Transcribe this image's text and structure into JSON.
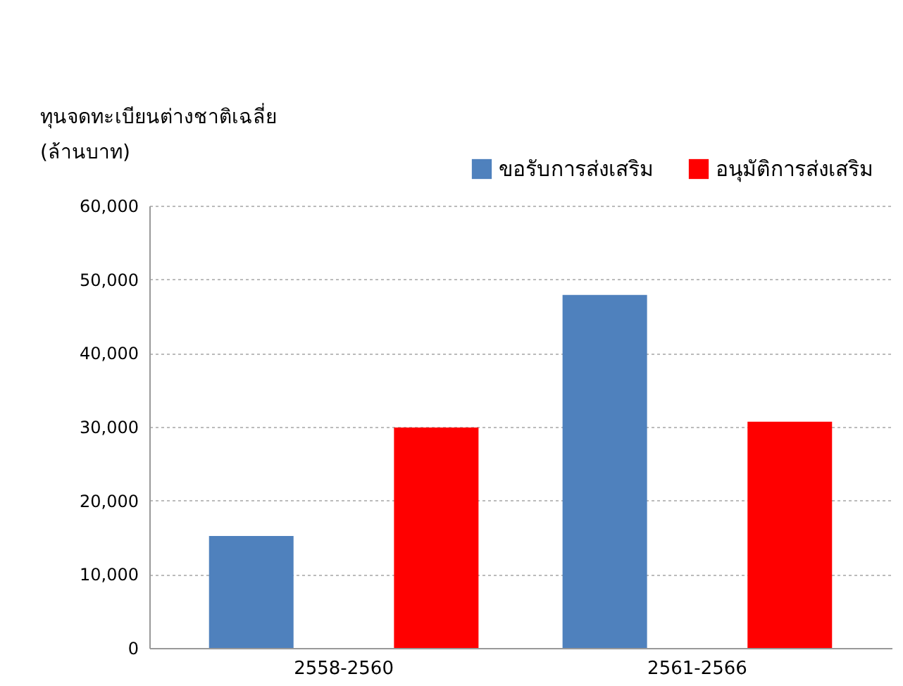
{
  "chart_data": {
    "type": "bar",
    "ylabel": "ทุนจดทะเบียนต่างชาติเฉลี่ย\n(ล้านบาท)",
    "categories": [
      "2558-2560",
      "2561-2566"
    ],
    "series": [
      {
        "name": "ขอรับการส่งเสริม",
        "color": "#4f81bd",
        "values": [
          15200,
          47900
        ]
      },
      {
        "name": "อนุมัติการส่งเสริม",
        "color": "#ff0000",
        "values": [
          29900,
          30700
        ]
      }
    ],
    "ylim": [
      0,
      60000
    ],
    "yticks": [
      0,
      {
        "value": 10000,
        "label": "10,000"
      },
      {
        "value": 20000,
        "label": "20,000"
      },
      {
        "value": 30000,
        "label": "30,000"
      },
      {
        "value": 40000,
        "label": "40,000"
      },
      {
        "value": 50000,
        "label": "50,000"
      },
      {
        "value": 60000,
        "label": "60,000"
      }
    ],
    "grid": "y",
    "legend": "top right"
  }
}
